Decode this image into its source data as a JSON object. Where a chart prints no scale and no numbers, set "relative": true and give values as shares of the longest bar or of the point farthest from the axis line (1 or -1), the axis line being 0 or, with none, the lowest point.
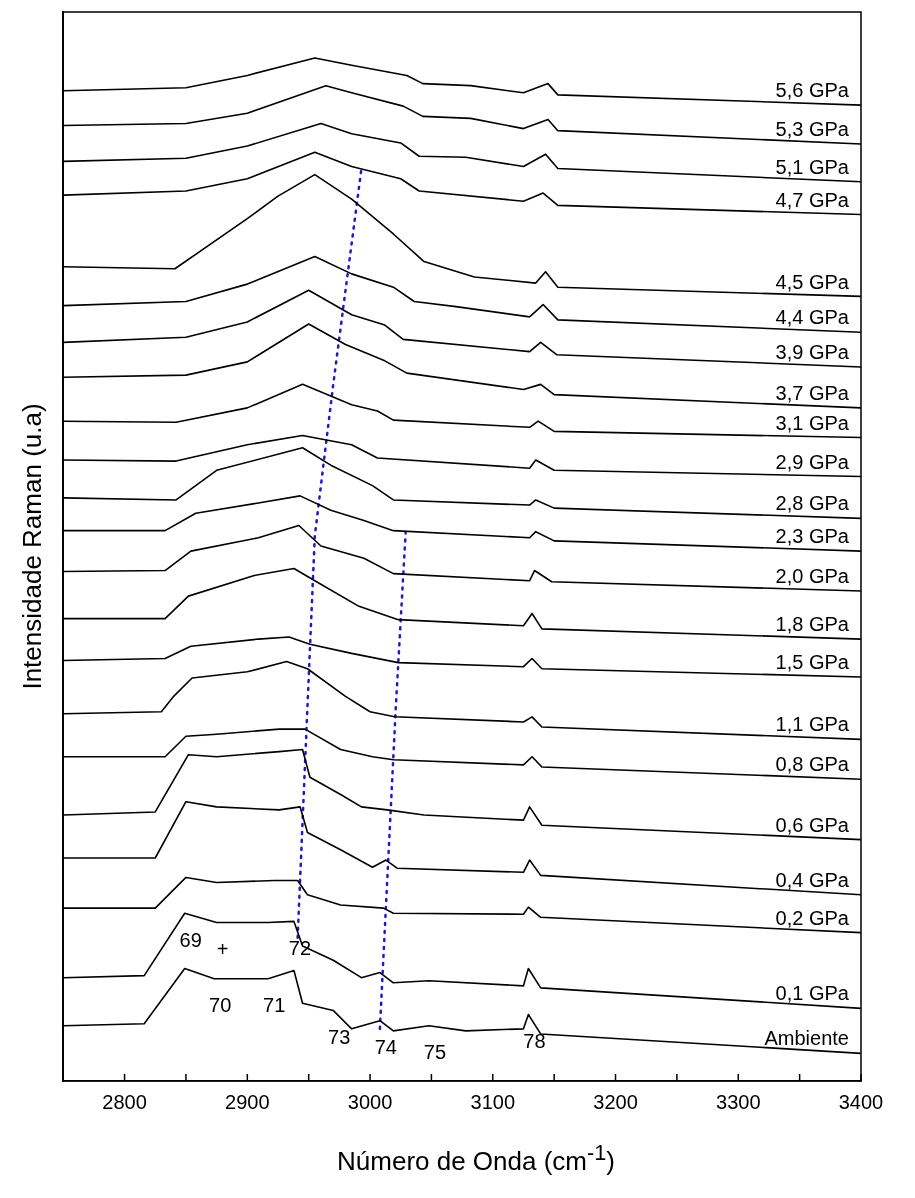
{
  "chart_data": {
    "type": "line",
    "relative": true,
    "xlabel": "Número de Onda (cm$^{-1}$)",
    "ylabel": "Intensidade Raman (u.a)",
    "xlim": [
      2750,
      3400
    ],
    "xticks": [
      2800,
      {
        "value": 2850,
        "label": null
      },
      2900,
      {
        "value": 2950,
        "label": null
      },
      3000,
      {
        "value": 3050,
        "label": null
      },
      3100,
      {
        "value": 3150,
        "label": null
      },
      3200,
      {
        "value": 3250,
        "label": null
      },
      3300,
      {
        "value": 3350,
        "label": null
      },
      3400
    ],
    "tick_labels": "x",
    "grid": false,
    "legend": false,
    "marker": "none",
    "line_style": "solid",
    "series": [
      {
        "name": "5,6 GPa",
        "color": "#000000",
        "x": [
          2750,
          2850,
          2900,
          2955,
          2985,
          3030,
          3043,
          3082,
          3125,
          3145,
          3153,
          3400
        ],
        "values": [
          0.968,
          0.971,
          0.983,
          1.0,
          0.993,
          0.983,
          0.975,
          0.973,
          0.966,
          0.975,
          0.964,
          0.954
        ]
      },
      {
        "name": "5,3 GPa",
        "color": "#000000",
        "x": [
          2750,
          2850,
          2900,
          2964,
          2985,
          3027,
          3043,
          3082,
          3125,
          3145,
          3153,
          3400
        ],
        "values": [
          0.934,
          0.936,
          0.946,
          0.973,
          0.966,
          0.953,
          0.943,
          0.941,
          0.931,
          0.94,
          0.929,
          0.916
        ]
      },
      {
        "name": "5,1 GPa",
        "color": "#000000",
        "x": [
          2750,
          2850,
          2900,
          2960,
          2985,
          3025,
          3040,
          3078,
          3125,
          3143,
          3153,
          3400
        ],
        "values": [
          0.899,
          0.902,
          0.914,
          0.936,
          0.926,
          0.917,
          0.904,
          0.903,
          0.894,
          0.906,
          0.892,
          0.879
        ]
      },
      {
        "name": "4,7 GPa",
        "color": "#000000",
        "x": [
          2750,
          2850,
          2900,
          2955,
          2985,
          3025,
          3040,
          3125,
          3141,
          3153,
          3400
        ],
        "values": [
          0.866,
          0.87,
          0.882,
          0.908,
          0.894,
          0.882,
          0.87,
          0.86,
          0.868,
          0.856,
          0.847
        ]
      },
      {
        "name": "4,5 GPa",
        "color": "#000000",
        "x": [
          2750,
          2841,
          2900,
          2925,
          2955,
          2985,
          3019,
          3044,
          3085,
          3135,
          3143,
          3153,
          3400
        ],
        "values": [
          0.796,
          0.794,
          0.843,
          0.865,
          0.886,
          0.862,
          0.828,
          0.801,
          0.786,
          0.78,
          0.791,
          0.776,
          0.767
        ]
      },
      {
        "name": "4,4 GPa",
        "color": "#000000",
        "x": [
          2750,
          2850,
          2900,
          2955,
          2985,
          3019,
          3036,
          3070,
          3130,
          3141,
          3153,
          3400
        ],
        "values": [
          0.758,
          0.762,
          0.779,
          0.806,
          0.789,
          0.776,
          0.762,
          0.757,
          0.747,
          0.759,
          0.744,
          0.732
        ]
      },
      {
        "name": "3,9 GPa",
        "color": "#000000",
        "x": [
          2750,
          2850,
          2900,
          2950,
          2985,
          3012,
          3027,
          3130,
          3139,
          3152,
          3400
        ],
        "values": [
          0.722,
          0.727,
          0.742,
          0.773,
          0.749,
          0.739,
          0.725,
          0.713,
          0.722,
          0.71,
          0.698
        ]
      },
      {
        "name": "3,7 GPa",
        "color": "#000000",
        "x": [
          2750,
          2850,
          2900,
          2950,
          2980,
          3012,
          3030,
          3125,
          3139,
          3150,
          3400
        ],
        "values": [
          0.688,
          0.69,
          0.703,
          0.74,
          0.72,
          0.704,
          0.692,
          0.676,
          0.681,
          0.671,
          0.658
        ]
      },
      {
        "name": "3,1 GPa",
        "color": "#000000",
        "x": [
          2750,
          2842,
          2900,
          2945,
          2985,
          3006,
          3019,
          3130,
          3137,
          3150,
          3400
        ],
        "values": [
          0.645,
          0.644,
          0.658,
          0.681,
          0.661,
          0.655,
          0.646,
          0.639,
          0.645,
          0.635,
          0.629
        ]
      },
      {
        "name": "2,9 GPa",
        "color": "#000000",
        "x": [
          2750,
          2842,
          2900,
          2945,
          2985,
          3006,
          3130,
          3135,
          3150,
          3400
        ],
        "values": [
          0.607,
          0.606,
          0.622,
          0.631,
          0.622,
          0.609,
          0.599,
          0.607,
          0.597,
          0.591
        ]
      },
      {
        "name": "2,8 GPa",
        "color": "#000000",
        "x": [
          2750,
          2842,
          2875,
          2945,
          2968,
          3002,
          3019,
          3130,
          3135,
          3150,
          3400
        ],
        "values": [
          0.57,
          0.568,
          0.597,
          0.619,
          0.602,
          0.582,
          0.568,
          0.563,
          0.568,
          0.56,
          0.55
        ]
      },
      {
        "name": "2,3 GPa",
        "color": "#000000",
        "x": [
          2750,
          2833,
          2858,
          2909,
          2943,
          2968,
          2995,
          3019,
          3130,
          3135,
          3150,
          3400
        ],
        "values": [
          0.538,
          0.538,
          0.555,
          0.565,
          0.572,
          0.558,
          0.548,
          0.538,
          0.531,
          0.537,
          0.528,
          0.518
        ]
      },
      {
        "name": "2,0 GPa",
        "color": "#000000",
        "x": [
          2750,
          2833,
          2854,
          2909,
          2942,
          2960,
          2995,
          3019,
          3130,
          3134,
          3148,
          3400
        ],
        "values": [
          0.498,
          0.499,
          0.518,
          0.531,
          0.543,
          0.523,
          0.511,
          0.496,
          0.489,
          0.499,
          0.488,
          0.479
        ]
      },
      {
        "name": "1,8 GPa",
        "color": "#000000",
        "x": [
          2750,
          2833,
          2852,
          2905,
          2938,
          2955,
          2991,
          3023,
          3125,
          3132,
          3140,
          3400
        ],
        "values": [
          0.452,
          0.452,
          0.474,
          0.494,
          0.501,
          0.489,
          0.464,
          0.451,
          0.445,
          0.457,
          0.442,
          0.432
        ]
      },
      {
        "name": "1,5 GPa",
        "color": "#000000",
        "x": [
          2750,
          2833,
          2854,
          2909,
          2934,
          2951,
          2985,
          3023,
          3125,
          3132,
          3140,
          3400
        ],
        "values": [
          0.411,
          0.413,
          0.425,
          0.432,
          0.434,
          0.427,
          0.418,
          0.409,
          0.405,
          0.413,
          0.403,
          0.395
        ]
      },
      {
        "name": "1,1 GPa",
        "color": "#000000",
        "x": [
          2750,
          2830,
          2840,
          2855,
          2900,
          2932,
          2949,
          2980,
          3000,
          3020,
          3125,
          3132,
          3140,
          3400
        ],
        "values": [
          0.359,
          0.361,
          0.376,
          0.394,
          0.4,
          0.41,
          0.403,
          0.376,
          0.361,
          0.356,
          0.351,
          0.356,
          0.346,
          0.334
        ]
      },
      {
        "name": "0,8 GPa",
        "color": "#000000",
        "x": [
          2750,
          2833,
          2850,
          2875,
          2926,
          2947,
          2976,
          3002,
          3019,
          3125,
          3132,
          3140,
          3400
        ],
        "values": [
          0.317,
          0.317,
          0.337,
          0.339,
          0.344,
          0.344,
          0.324,
          0.317,
          0.314,
          0.309,
          0.317,
          0.307,
          0.295
        ]
      },
      {
        "name": "0,6 GPa",
        "color": "#000000",
        "x": [
          2750,
          2825,
          2852,
          2875,
          2926,
          2945,
          2951,
          2976,
          2993,
          3014,
          3044,
          3125,
          3130,
          3140,
          3400
        ],
        "values": [
          0.26,
          0.263,
          0.319,
          0.317,
          0.322,
          0.324,
          0.297,
          0.28,
          0.268,
          0.265,
          0.26,
          0.255,
          0.268,
          0.25,
          0.236
        ]
      },
      {
        "name": "0,4 GPa",
        "color": "#000000",
        "x": [
          2750,
          2825,
          2850,
          2875,
          2926,
          2943,
          2949,
          2976,
          3002,
          3013,
          3022,
          3125,
          3130,
          3139,
          3400
        ],
        "values": [
          0.218,
          0.218,
          0.273,
          0.268,
          0.265,
          0.268,
          0.243,
          0.226,
          0.209,
          0.216,
          0.208,
          0.204,
          0.216,
          0.201,
          0.182
        ]
      },
      {
        "name": "0,2 GPa",
        "color": "#000000",
        "x": [
          2750,
          2825,
          2850,
          2875,
          2922,
          2941,
          2949,
          2976,
          3011,
          3019,
          3125,
          3129,
          3139,
          3400
        ],
        "values": [
          0.169,
          0.169,
          0.199,
          0.194,
          0.196,
          0.196,
          0.182,
          0.172,
          0.169,
          0.164,
          0.163,
          0.17,
          0.16,
          0.145
        ]
      },
      {
        "name": "0,1 GPa",
        "color": "#000000",
        "x": [
          2750,
          2816,
          2849,
          2875,
          2917,
          2938,
          2945,
          2970,
          2993,
          3008,
          3019,
          3048,
          3125,
          3129,
          3139,
          3400
        ],
        "values": [
          0.101,
          0.103,
          0.164,
          0.155,
          0.155,
          0.156,
          0.132,
          0.118,
          0.101,
          0.106,
          0.096,
          0.098,
          0.093,
          0.11,
          0.091,
          0.071
        ]
      },
      {
        "name": "Ambiente",
        "color": "#000000",
        "x": [
          2750,
          2816,
          2849,
          2873,
          2917,
          2938,
          2945,
          2970,
          2985,
          3008,
          3019,
          3048,
          3078,
          3125,
          3129,
          3139,
          3400
        ],
        "values": [
          0.054,
          0.056,
          0.11,
          0.1,
          0.1,
          0.108,
          0.076,
          0.069,
          0.051,
          0.059,
          0.049,
          0.054,
          0.049,
          0.051,
          0.065,
          0.046,
          0.027
        ]
      },
      {
        "color": "#1a1ad6",
        "line_style": "dotted",
        "x": [
          2941,
          2949,
          2955,
          2970,
          2993
        ],
        "values": [
          0.14,
          0.366,
          0.533,
          0.681,
          0.892
        ]
      },
      {
        "color": "#1a1ad6",
        "line_style": "dotted",
        "x": [
          3008,
          3021,
          3029
        ],
        "values": [
          0.051,
          0.366,
          0.536
        ]
      }
    ],
    "annotations": [
      {
        "text": "69",
        "x": 2849,
        "y": 0.164
      },
      {
        "text": "+",
        "x": 2875,
        "y": 0.155
      },
      {
        "text": "72",
        "x": 2938,
        "y": 0.156
      },
      {
        "text": "70",
        "x": 2873,
        "y": 0.1
      },
      {
        "text": "71",
        "x": 2917,
        "y": 0.1
      },
      {
        "text": "73",
        "x": 2970,
        "y": 0.069
      },
      {
        "text": "74",
        "x": 3008,
        "y": 0.059
      },
      {
        "text": "75",
        "x": 3048,
        "y": 0.054
      },
      {
        "text": "78",
        "x": 3129,
        "y": 0.065
      }
    ]
  }
}
